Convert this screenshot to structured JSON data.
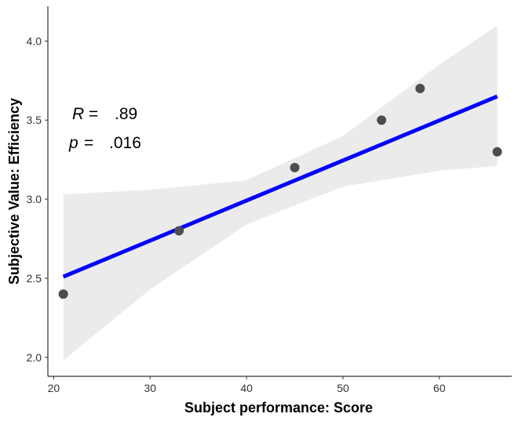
{
  "chart_data": {
    "type": "scatter",
    "xlabel": "Subject performance: Score",
    "ylabel": "Subjective Value: Efficiency",
    "xlim": [
      19.4,
      67.5
    ],
    "ylim": [
      1.88,
      4.22
    ],
    "x_ticks": [
      20,
      30,
      40,
      50,
      60
    ],
    "y_ticks": [
      2.0,
      2.5,
      3.0,
      3.5,
      4.0
    ],
    "x_tick_labels": [
      "20",
      "30",
      "40",
      "50",
      "60"
    ],
    "y_tick_labels": [
      "2.0",
      "2.5",
      "3.0",
      "3.5",
      "4.0"
    ],
    "points": [
      {
        "x": 21,
        "y": 2.4
      },
      {
        "x": 33,
        "y": 2.8
      },
      {
        "x": 45,
        "y": 3.2
      },
      {
        "x": 54,
        "y": 3.5
      },
      {
        "x": 58,
        "y": 3.7
      },
      {
        "x": 66,
        "y": 3.3
      }
    ],
    "fit_line": {
      "x": [
        21,
        66
      ],
      "y": [
        2.51,
        3.65
      ],
      "color": "#0000ff"
    },
    "confidence_band": {
      "x": [
        21,
        30,
        40,
        50,
        60,
        66
      ],
      "lower": [
        1.98,
        2.43,
        2.84,
        3.08,
        3.18,
        3.21
      ],
      "upper": [
        3.03,
        3.06,
        3.12,
        3.4,
        3.85,
        4.1
      ],
      "color": "#ebebeb"
    },
    "point_color": "#4d4d4d",
    "grid": false,
    "annotation": {
      "r_label": "R",
      "r_eq": "=",
      "r_value": ".89",
      "p_label": "p",
      "p_eq": "=",
      "p_value": ".016"
    }
  }
}
